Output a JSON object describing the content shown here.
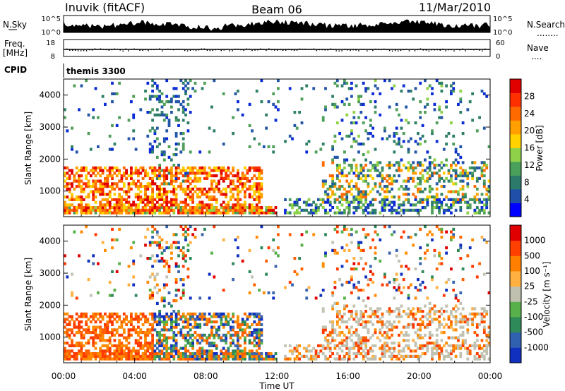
{
  "header": {
    "station": "Inuvik (fitACF)",
    "beam": "Beam 06",
    "date": "11/Mar/2010"
  },
  "strip": {
    "nsky_label": "N.Sky",
    "nsky_ticks": [
      "10^5",
      "10^0"
    ],
    "nsearch_label": "N.Search",
    "nsearch_ticks": [
      "10^5",
      "10^0"
    ],
    "freq_label": "Freq.",
    "freq_unit": "[MHz]",
    "freq_ticks": [
      "18",
      "8"
    ],
    "nave_label": "Nave",
    "nave_ticks": [
      "60",
      "0"
    ],
    "cpid_label": "CPID",
    "cpid_value": "themis 3300"
  },
  "chart_data": [
    {
      "type": "heatmap",
      "quantity": "Power",
      "ylabel": "Slant Range [km]",
      "xlabel": "Time UT",
      "x_ticks": [
        "00:00",
        "04:00",
        "08:00",
        "12:00",
        "16:00",
        "20:00",
        "00:00"
      ],
      "y_ticks": [
        1000,
        2000,
        3000,
        4000
      ],
      "ylim": [
        200,
        4500
      ],
      "xlim_hours": [
        0,
        24
      ],
      "colorbar": {
        "label": "Power [dB]",
        "ticks": [
          "28",
          "24",
          "20",
          "16",
          "12",
          "8",
          "4"
        ],
        "colors": [
          "#0000ff",
          "#1f4fa8",
          "#2b7a6a",
          "#4aa05a",
          "#8fd24a",
          "#ffd200",
          "#ffa000",
          "#ff6a00",
          "#ff3000",
          "#e00000"
        ]
      }
    },
    {
      "type": "heatmap",
      "quantity": "Velocity",
      "ylabel": "Slant Range [km]",
      "xlabel": "Time UT",
      "x_ticks": [
        "00:00",
        "04:00",
        "08:00",
        "12:00",
        "16:00",
        "20:00",
        "00:00"
      ],
      "y_ticks": [
        1000,
        2000,
        3000,
        4000
      ],
      "ylim": [
        200,
        4500
      ],
      "xlim_hours": [
        0,
        24
      ],
      "colorbar": {
        "label": "Velocity [m s⁻¹]",
        "ticks": [
          "1000",
          "500",
          "100",
          "25",
          "-25",
          "-100",
          "-500",
          "-1000"
        ],
        "colors": [
          "#1030c0",
          "#3060b0",
          "#2f8a5a",
          "#58b04a",
          "#c0c0b0",
          "#ffb040",
          "#ff8000",
          "#ff4000",
          "#e00000"
        ]
      }
    }
  ],
  "palette": {
    "power": [
      "#0a2bd6",
      "#2456a8",
      "#2f7f6a",
      "#4f9f5a",
      "#8fd24a",
      "#ffd000",
      "#ffa000",
      "#ff6a00",
      "#ff3000",
      "#e00000"
    ],
    "velocity": [
      "#1030c0",
      "#3b66b0",
      "#2f8a5a",
      "#58b04a",
      "#c2c2b2",
      "#ffb040",
      "#ff8c00",
      "#ff6000",
      "#ff3a00",
      "#e00000"
    ]
  }
}
